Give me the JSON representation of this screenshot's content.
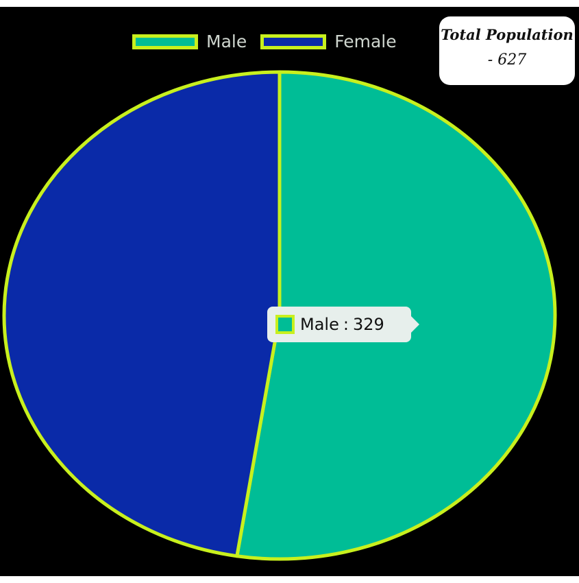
{
  "colors": {
    "background": "#000000",
    "male": "#00bd96",
    "female": "#0a2aa8",
    "border": "#c8f01e",
    "legend_text": "#cfd6cf",
    "panel": "#ffffff",
    "tooltip": "#e7efec"
  },
  "legend": {
    "items": [
      {
        "label": "Male"
      },
      {
        "label": "Female"
      }
    ]
  },
  "summary": {
    "title": "Total Population",
    "value": "- 627"
  },
  "tooltip": {
    "label": "Male",
    "separator": ":",
    "value": "329"
  },
  "chart_data": {
    "type": "pie",
    "title": "",
    "categories": [
      "Male",
      "Female"
    ],
    "values": [
      329,
      298
    ],
    "colors": [
      "#00bd96",
      "#0a2aa8"
    ],
    "total": 627,
    "legend_placement": "top",
    "annotations": [
      {
        "text": "Total Population"
      },
      {
        "text": "- 627"
      },
      {
        "text": "Male : 329"
      }
    ]
  }
}
